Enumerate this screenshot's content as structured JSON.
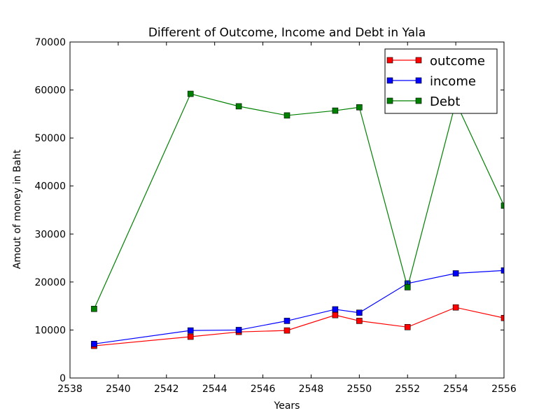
{
  "chart_data": {
    "type": "line",
    "title": "Different of Outcome, Income and Debt in Yala",
    "xlabel": "Years",
    "ylabel": "Amout of money in Baht",
    "xlim": [
      2538,
      2556
    ],
    "ylim": [
      0,
      70000
    ],
    "xticks": [
      2538,
      2540,
      2542,
      2544,
      2546,
      2548,
      2550,
      2552,
      2554,
      2556
    ],
    "yticks": [
      0,
      10000,
      20000,
      30000,
      40000,
      50000,
      60000,
      70000
    ],
    "grid": false,
    "legend_position": "top-right",
    "x": [
      2539,
      2543,
      2545,
      2547,
      2549,
      2550,
      2552,
      2554,
      2556
    ],
    "series": [
      {
        "name": "outcome",
        "color": "#ff0000",
        "marker": "square",
        "values": [
          6700,
          8600,
          9600,
          9900,
          13100,
          11900,
          10600,
          14700,
          12500
        ]
      },
      {
        "name": "income",
        "color": "#0000ff",
        "marker": "square",
        "values": [
          7100,
          9900,
          10000,
          11900,
          14300,
          13600,
          19700,
          21800,
          22400
        ]
      },
      {
        "name": "Debt",
        "color": "#008000",
        "marker": "square",
        "values": [
          14400,
          59200,
          56600,
          54700,
          55700,
          56400,
          18900,
          57500,
          35900
        ]
      }
    ]
  }
}
